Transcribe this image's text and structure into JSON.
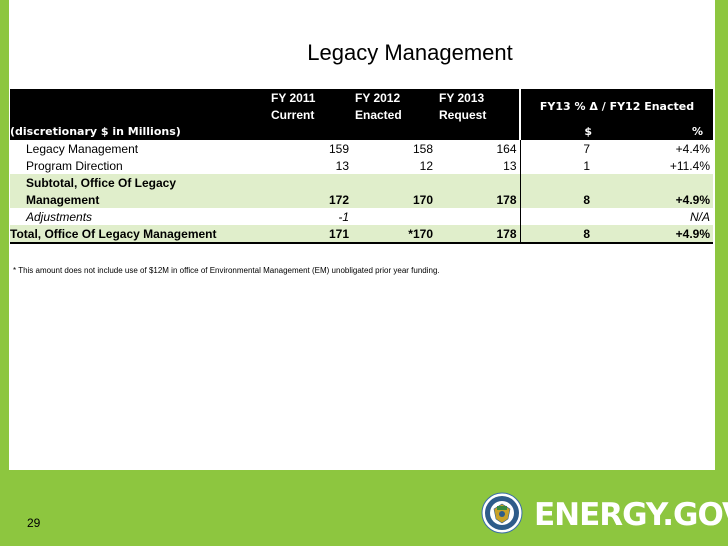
{
  "title": "Legacy Management",
  "header": {
    "col1_line1": "FY 2011",
    "col1_line2": "Current",
    "col2_line1": "FY 2012",
    "col2_line2": "Enacted",
    "col3_line1": "FY 2013",
    "col3_line2": "Request",
    "delta_header": "FY13 % Δ / FY12 Enacted",
    "units_label": "(discretionary $ in Millions)",
    "dollar_label": "$",
    "percent_label": "%"
  },
  "rows": [
    {
      "label": "Legacy Management",
      "fy2011": "159",
      "fy2012": "158",
      "fy2013": "164",
      "delta_dollar": "7",
      "delta_pct": "+4.4%"
    },
    {
      "label": "Program Direction",
      "fy2011": "13",
      "fy2012": "12",
      "fy2013": "13",
      "delta_dollar": "1",
      "delta_pct": "+11.4%"
    }
  ],
  "subtotal": {
    "label_line1": "Subtotal, Office Of Legacy",
    "label_line2": "Management",
    "fy2011": "172",
    "fy2012": "170",
    "fy2013": "178",
    "delta_dollar": "8",
    "delta_pct": "+4.9%"
  },
  "adjustments": {
    "label": "Adjustments",
    "fy2011": "-1",
    "fy2012": "",
    "fy2013": "",
    "delta_dollar": "",
    "delta_pct": "N/A"
  },
  "total": {
    "label": "Total, Office Of Legacy Management",
    "fy2011": "171",
    "fy2012": "*170",
    "fy2013": "178",
    "delta_dollar": "8",
    "delta_pct": "+4.9%"
  },
  "footnote": "* This amount does not include use of $12M in office of Environmental Management (EM) unobligated prior year funding.",
  "page_number": "29",
  "logo_text": "ENERGY.GOV",
  "colors": {
    "frame_green": "#8dc63f",
    "row_green": "#e0eecb",
    "header_black": "#000000"
  }
}
